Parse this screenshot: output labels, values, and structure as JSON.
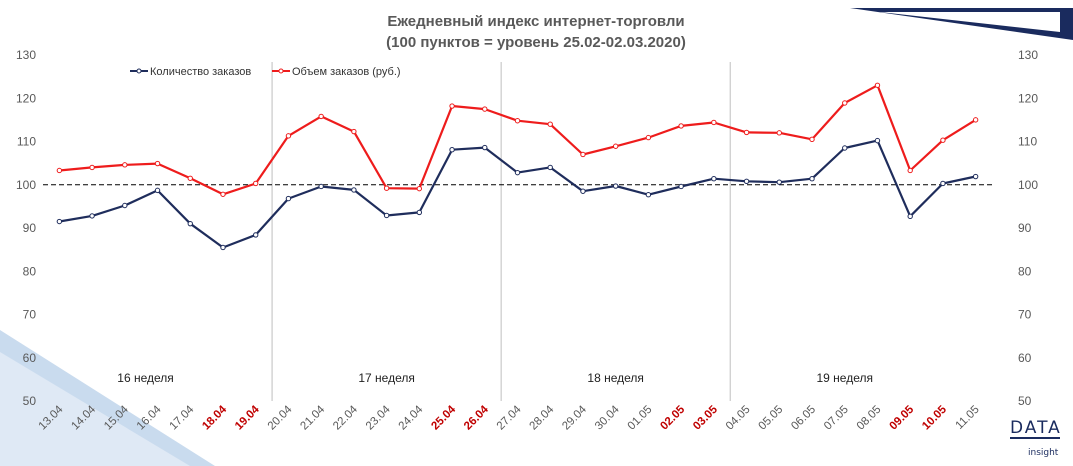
{
  "chart_data": {
    "type": "line",
    "title_line1": "Ежедневный индекс интернет-торговли",
    "title_line2": "(100 пунктов = уровень 25.02-02.03.2020)",
    "ylim": [
      50,
      130
    ],
    "yticks": [
      50,
      60,
      70,
      80,
      90,
      100,
      110,
      120,
      130
    ],
    "baseline": 100,
    "categories": [
      "13.04",
      "14.04",
      "15.04",
      "16.04",
      "17.04",
      "18.04",
      "19.04",
      "20.04",
      "21.04",
      "22.04",
      "23.04",
      "24.04",
      "25.04",
      "26.04",
      "27.04",
      "28.04",
      "29.04",
      "30.04",
      "01.05",
      "02.05",
      "03.05",
      "04.05",
      "05.05",
      "06.05",
      "07.05",
      "08.05",
      "09.05",
      "10.05",
      "11.05"
    ],
    "highlighted_categories": [
      "18.04",
      "19.04",
      "25.04",
      "26.04",
      "02.05",
      "03.05",
      "09.05",
      "10.05"
    ],
    "series": [
      {
        "name": "Количество заказов",
        "color": "#1f2d5c",
        "values": [
          91.5,
          92.8,
          95.2,
          98.7,
          91.0,
          85.5,
          88.4,
          96.8,
          99.6,
          98.8,
          92.9,
          93.6,
          108.1,
          108.6,
          102.8,
          104.0,
          98.5,
          99.7,
          97.7,
          99.6,
          101.4,
          100.8,
          100.6,
          101.4,
          108.5,
          110.2,
          92.7,
          100.3,
          101.9
        ]
      },
      {
        "name": "Объем заказов (руб.)",
        "color": "#ee1c1c",
        "values": [
          103.3,
          104.0,
          104.6,
          104.9,
          101.5,
          97.8,
          100.3,
          111.3,
          115.8,
          112.3,
          99.2,
          99.1,
          118.2,
          117.5,
          114.8,
          114.0,
          107.0,
          108.9,
          110.9,
          113.6,
          114.4,
          112.1,
          112.0,
          110.5,
          118.9,
          123.0,
          103.3,
          110.3,
          115.0
        ]
      }
    ],
    "week_labels": [
      "16 неделя",
      "17 неделя",
      "18 неделя",
      "19 неделя"
    ],
    "legend_position": "top-left"
  },
  "colors": {
    "axis_text": "#595959",
    "highlight_text": "#c00000",
    "baseline": "#000000",
    "week_separator": "#bfbfbf",
    "decor_dark": "#1a2b5e",
    "decor_light": "#c9dbee"
  },
  "logo": {
    "top": "DATA",
    "sub": "insight"
  }
}
